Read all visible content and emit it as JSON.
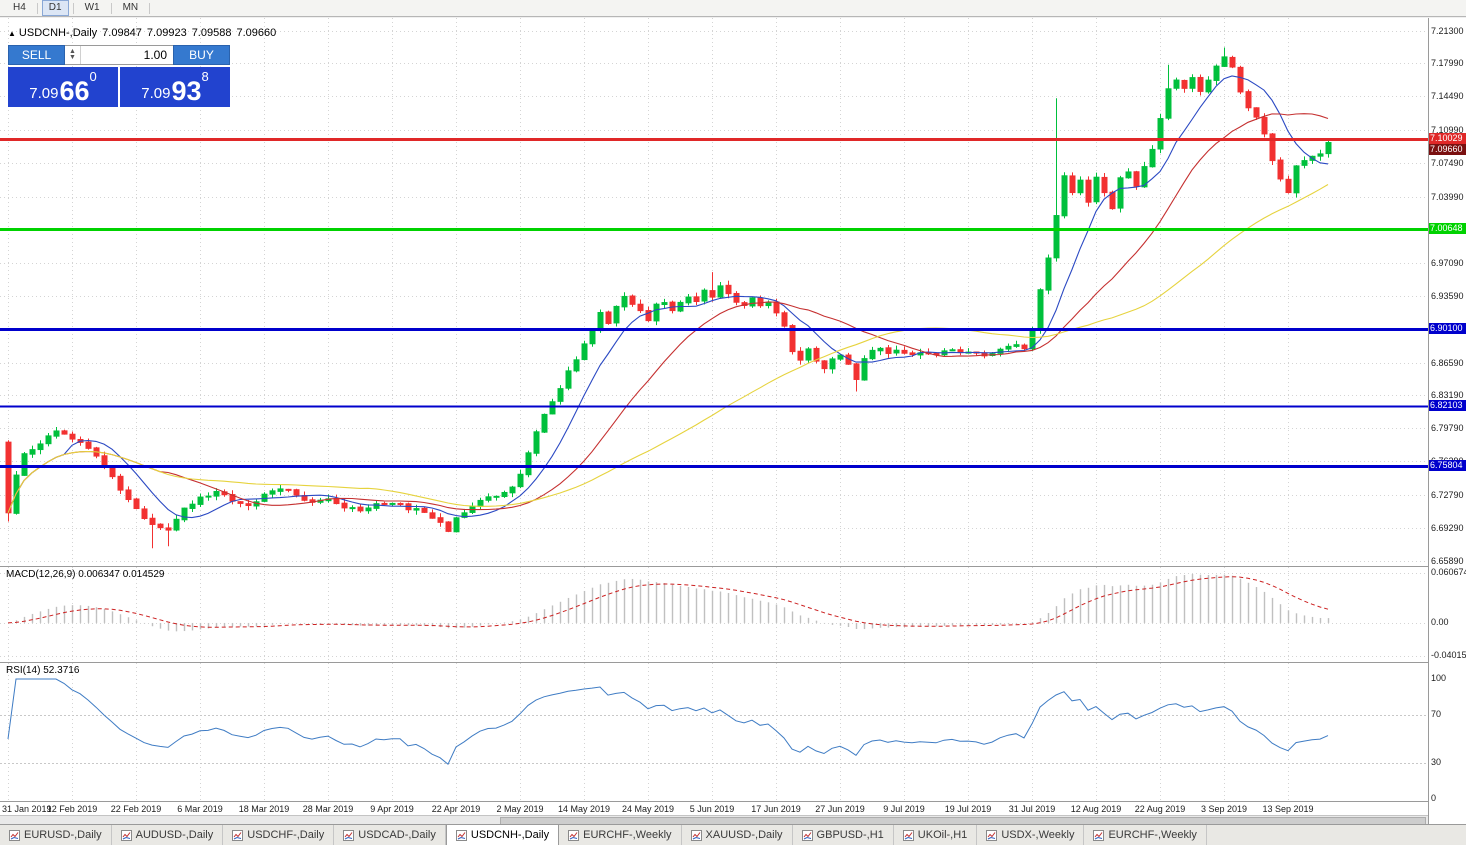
{
  "toolbar": {
    "periods": [
      "H4",
      "D1",
      "W1",
      "MN"
    ],
    "active_period": "D1"
  },
  "chart_header": {
    "marker_icon": "▲",
    "symbol": "USDCNH-,Daily",
    "open": "7.09847",
    "high": "7.09923",
    "low": "7.09588",
    "close": "7.09660"
  },
  "trade_panel": {
    "sell_label": "SELL",
    "buy_label": "BUY",
    "volume": "1.00",
    "sell_price": {
      "base": "7.09",
      "big": "66",
      "sup": "0"
    },
    "buy_price": {
      "base": "7.09",
      "big": "93",
      "sup": "8"
    }
  },
  "indicators": {
    "macd_label": "MACD(12,26,9) 0.006347 0.014529",
    "rsi_label": "RSI(14) 52.3716"
  },
  "axes": {
    "price_labels": [
      "7.21300",
      "7.17990",
      "7.14490",
      "7.10990",
      "7.07490",
      "7.03990",
      "7.00590",
      "6.97090",
      "6.93590",
      "6.90090",
      "6.86590",
      "6.83190",
      "6.79790",
      "6.76290",
      "6.72790",
      "6.69290",
      "6.65890"
    ],
    "macd_labels": [
      {
        "text": "0.060674",
        "value": 0.060674
      },
      {
        "text": "0.00",
        "value": 0
      },
      {
        "text": "-0.040152",
        "value": -0.040152
      }
    ],
    "rsi_labels": [
      {
        "text": "100",
        "value": 100
      },
      {
        "text": "70",
        "value": 70
      },
      {
        "text": "30",
        "value": 30
      },
      {
        "text": "0",
        "value": 0
      }
    ],
    "date_labels": [
      "31 Jan 2019",
      "12 Feb 2019",
      "22 Feb 2019",
      "6 Mar 2019",
      "18 Mar 2019",
      "28 Mar 2019",
      "9 Apr 2019",
      "22 Apr 2019",
      "2 May 2019",
      "14 May 2019",
      "24 May 2019",
      "5 Jun 2019",
      "17 Jun 2019",
      "27 Jun 2019",
      "9 Jul 2019",
      "19 Jul 2019",
      "31 Jul 2019",
      "12 Aug 2019",
      "22 Aug 2019",
      "3 Sep 2019",
      "13 Sep 2019"
    ]
  },
  "levels": [
    {
      "price": 7.10029,
      "label": "7.10029",
      "color": "#e02828",
      "width": 3
    },
    {
      "price": 7.00648,
      "label": "7.00648",
      "color": "#00d200",
      "width": 3
    },
    {
      "price": 6.901,
      "label": "6.90100",
      "color": "#0000cc",
      "width": 3
    },
    {
      "price": 6.82103,
      "label": "6.82103",
      "color": "#0000cc",
      "width": 2
    },
    {
      "price": 6.75804,
      "label": "6.75804",
      "color": "#0000cc",
      "width": 3
    }
  ],
  "current_price": {
    "label": "7.09660",
    "value": 7.0966,
    "badge_color": "#7a1010"
  },
  "chart_data": {
    "type": "candlestick",
    "symbol": "USDCNH",
    "timeframe": "Daily",
    "price_range": [
      6.65441,
      7.22694
    ],
    "candle_count": 166,
    "first_open": 6.783,
    "close_anchors": [
      [
        0,
        6.708
      ],
      [
        1,
        6.748
      ],
      [
        2,
        6.772
      ],
      [
        4,
        6.78
      ],
      [
        6,
        6.796
      ],
      [
        8,
        6.788
      ],
      [
        10,
        6.778
      ],
      [
        12,
        6.758
      ],
      [
        14,
        6.733
      ],
      [
        16,
        6.713
      ],
      [
        18,
        6.697
      ],
      [
        20,
        6.692
      ],
      [
        22,
        6.712
      ],
      [
        24,
        6.726
      ],
      [
        26,
        6.731
      ],
      [
        28,
        6.722
      ],
      [
        30,
        6.717
      ],
      [
        32,
        6.728
      ],
      [
        34,
        6.736
      ],
      [
        36,
        6.728
      ],
      [
        38,
        6.719
      ],
      [
        40,
        6.722
      ],
      [
        42,
        6.714
      ],
      [
        44,
        6.711
      ],
      [
        46,
        6.717
      ],
      [
        48,
        6.72
      ],
      [
        50,
        6.714
      ],
      [
        52,
        6.709
      ],
      [
        54,
        6.699
      ],
      [
        55,
        6.691
      ],
      [
        56,
        6.703
      ],
      [
        58,
        6.717
      ],
      [
        60,
        6.724
      ],
      [
        62,
        6.731
      ],
      [
        63,
        6.737
      ],
      [
        64,
        6.748
      ],
      [
        65,
        6.772
      ],
      [
        66,
        6.792
      ],
      [
        67,
        6.812
      ],
      [
        68,
        6.826
      ],
      [
        69,
        6.841
      ],
      [
        70,
        6.856
      ],
      [
        71,
        6.871
      ],
      [
        72,
        6.884
      ],
      [
        73,
        6.901
      ],
      [
        74,
        6.917
      ],
      [
        75,
        6.909
      ],
      [
        76,
        6.926
      ],
      [
        77,
        6.936
      ],
      [
        78,
        6.927
      ],
      [
        79,
        6.919
      ],
      [
        80,
        6.911
      ],
      [
        81,
        6.926
      ],
      [
        82,
        6.931
      ],
      [
        83,
        6.921
      ],
      [
        84,
        6.929
      ],
      [
        85,
        6.936
      ],
      [
        86,
        6.929
      ],
      [
        87,
        6.941
      ],
      [
        88,
        6.934
      ],
      [
        89,
        6.946
      ],
      [
        90,
        6.939
      ],
      [
        91,
        6.929
      ],
      [
        92,
        6.927
      ],
      [
        93,
        6.933
      ],
      [
        94,
        6.927
      ],
      [
        95,
        6.931
      ],
      [
        96,
        6.919
      ],
      [
        97,
        6.904
      ],
      [
        98,
        6.879
      ],
      [
        99,
        6.869
      ],
      [
        100,
        6.879
      ],
      [
        101,
        6.869
      ],
      [
        102,
        6.861
      ],
      [
        103,
        6.869
      ],
      [
        104,
        6.874
      ],
      [
        105,
        6.864
      ],
      [
        106,
        6.849
      ],
      [
        107,
        6.871
      ],
      [
        108,
        6.879
      ],
      [
        109,
        6.881
      ],
      [
        110,
        6.874
      ],
      [
        111,
        6.881
      ],
      [
        112,
        6.877
      ],
      [
        114,
        6.875
      ],
      [
        116,
        6.873
      ],
      [
        118,
        6.881
      ],
      [
        120,
        6.877
      ],
      [
        122,
        6.875
      ],
      [
        124,
        6.879
      ],
      [
        126,
        6.886
      ],
      [
        127,
        6.879
      ],
      [
        128,
        6.901
      ],
      [
        129,
        6.941
      ],
      [
        130,
        6.976
      ],
      [
        131,
        7.022
      ],
      [
        132,
        7.061
      ],
      [
        133,
        7.044
      ],
      [
        134,
        7.056
      ],
      [
        135,
        7.034
      ],
      [
        136,
        7.061
      ],
      [
        137,
        7.044
      ],
      [
        138,
        7.029
      ],
      [
        139,
        7.061
      ],
      [
        140,
        7.066
      ],
      [
        141,
        7.049
      ],
      [
        142,
        7.071
      ],
      [
        143,
        7.091
      ],
      [
        144,
        7.121
      ],
      [
        145,
        7.151
      ],
      [
        146,
        7.161
      ],
      [
        147,
        7.154
      ],
      [
        148,
        7.166
      ],
      [
        149,
        7.149
      ],
      [
        150,
        7.161
      ],
      [
        151,
        7.176
      ],
      [
        152,
        7.186
      ],
      [
        153,
        7.174
      ],
      [
        154,
        7.149
      ],
      [
        155,
        7.131
      ],
      [
        156,
        7.124
      ],
      [
        157,
        7.104
      ],
      [
        158,
        7.079
      ],
      [
        159,
        7.059
      ],
      [
        160,
        7.044
      ],
      [
        161,
        7.071
      ],
      [
        162,
        7.076
      ],
      [
        163,
        7.081
      ],
      [
        164,
        7.086
      ],
      [
        165,
        7.0966
      ]
    ],
    "wick_overrides": {
      "0": {
        "low": 6.7
      },
      "18": {
        "low": 6.672
      },
      "20": {
        "low": 6.674
      },
      "88": {
        "high": 6.961
      },
      "106": {
        "low": 6.836
      },
      "131": {
        "high": 7.143
      },
      "145": {
        "high": 7.178
      },
      "152": {
        "high": 7.196
      }
    },
    "date_tick_indices": [
      0,
      8,
      16,
      24,
      32,
      40,
      48,
      56,
      64,
      72,
      80,
      88,
      96,
      104,
      112,
      120,
      128,
      136,
      144,
      152,
      160
    ],
    "moving_averages": [
      {
        "period": 8,
        "color": "#2b49c3"
      },
      {
        "period": 20,
        "color": "#c53030"
      },
      {
        "period": 45,
        "color": "#e6d33e"
      }
    ],
    "macd": {
      "fast": 12,
      "slow": 26,
      "signal": 9,
      "scale": [
        -0.040152,
        0.060674
      ],
      "histogram_color": "#c0c0c0",
      "signal_color": "#cc2222"
    },
    "rsi": {
      "period": 14,
      "color": "#3f7cc4",
      "levels": [
        70,
        30
      ]
    },
    "candle_up_color": "#00c03c",
    "candle_down_color": "#f23131",
    "grid_color": "#d4d4d4"
  },
  "tabs": {
    "items": [
      "EURUSD-,Daily",
      "AUDUSD-,Daily",
      "USDCHF-,Daily",
      "USDCAD-,Daily",
      "USDCNH-,Daily",
      "EURCHF-,Weekly",
      "XAUUSD-,Daily",
      "GBPUSD-,H1",
      "UKOil-,H1",
      "USDX-,Weekly",
      "EURCHF-,Weekly"
    ],
    "active_index": 4
  }
}
